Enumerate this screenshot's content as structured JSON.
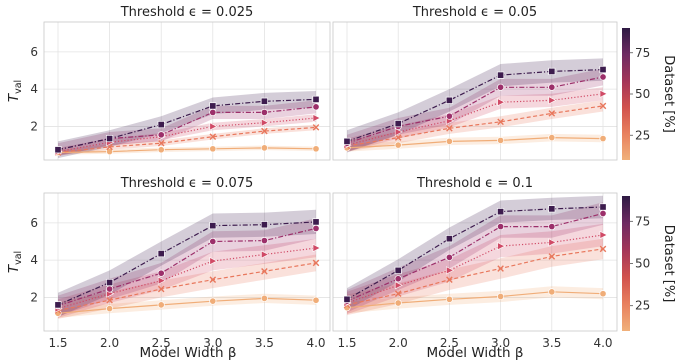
{
  "chart_data": {
    "type": "line",
    "figure": {
      "xlabel": "Model Width β",
      "ylabel": "T_val",
      "colorbar": {
        "label": "Dataset [%]",
        "ticks": [
          "25",
          "50",
          "75"
        ],
        "range": [
          10,
          90
        ],
        "colors": [
          "#f0b07a",
          "#e8805e",
          "#d1524e",
          "#a33559",
          "#6e2a62",
          "#2e1a43"
        ]
      }
    },
    "x": [
      1.5,
      2.0,
      2.5,
      3.0,
      3.5,
      4.0
    ],
    "x_tick_labels": [
      "1.5",
      "2.0",
      "2.5",
      "3.0",
      "3.5",
      "4.0"
    ],
    "y_ticks": [
      2,
      4,
      6
    ],
    "y_tick_labels": [
      "2",
      "4",
      "6"
    ],
    "ylim": [
      0.2,
      7.6
    ],
    "series_styles": [
      {
        "dataset": 10,
        "color": "#f0ad78",
        "marker": "circle",
        "dash": "solid"
      },
      {
        "dataset": 25,
        "color": "#e8775c",
        "marker": "x",
        "dash": "dashed"
      },
      {
        "dataset": 40,
        "color": "#d04a66",
        "marker": "triangle",
        "dash": "dotted"
      },
      {
        "dataset": 60,
        "color": "#9c2f6a",
        "marker": "circle",
        "dash": "dashdot"
      },
      {
        "dataset": 85,
        "color": "#3d1c4e",
        "marker": "square",
        "dash": "dashdot"
      }
    ],
    "panels": [
      {
        "title": "Threshold ϵ = 0.025",
        "series": [
          {
            "values": [
              0.6,
              0.65,
              0.75,
              0.8,
              0.85,
              0.8
            ],
            "band": 0.12
          },
          {
            "values": [
              0.6,
              0.9,
              1.1,
              1.45,
              1.75,
              1.95
            ],
            "band": 0.15
          },
          {
            "values": [
              0.65,
              1.15,
              1.45,
              2.0,
              2.2,
              2.45
            ],
            "band": 0.2
          },
          {
            "values": [
              0.75,
              1.35,
              1.55,
              2.75,
              2.75,
              3.05
            ],
            "band": 0.35
          },
          {
            "values": [
              0.75,
              1.35,
              2.1,
              3.1,
              3.35,
              3.45
            ],
            "band": 0.45
          }
        ]
      },
      {
        "title": "Threshold ϵ = 0.05",
        "series": [
          {
            "values": [
              0.85,
              1.0,
              1.2,
              1.25,
              1.4,
              1.35
            ],
            "band": 0.2
          },
          {
            "values": [
              0.95,
              1.4,
              1.9,
              2.25,
              2.7,
              3.1
            ],
            "band": 0.3
          },
          {
            "values": [
              1.0,
              1.7,
              2.3,
              3.3,
              3.4,
              3.75
            ],
            "band": 0.35
          },
          {
            "values": [
              1.1,
              2.0,
              2.55,
              4.1,
              4.1,
              4.65
            ],
            "band": 0.45
          },
          {
            "values": [
              1.2,
              2.15,
              3.4,
              4.75,
              4.95,
              5.05
            ],
            "band": 0.6
          }
        ]
      },
      {
        "title": "Threshold ϵ = 0.075",
        "series": [
          {
            "values": [
              1.15,
              1.4,
              1.6,
              1.8,
              1.95,
              1.85
            ],
            "band": 0.25
          },
          {
            "values": [
              1.3,
              1.85,
              2.45,
              2.95,
              3.4,
              3.85
            ],
            "band": 0.45
          },
          {
            "values": [
              1.4,
              2.2,
              2.9,
              3.95,
              4.3,
              4.65
            ],
            "band": 0.5
          },
          {
            "values": [
              1.55,
              2.45,
              3.3,
              5.0,
              5.05,
              5.7
            ],
            "band": 0.55
          },
          {
            "values": [
              1.6,
              2.8,
              4.35,
              5.85,
              5.9,
              6.05
            ],
            "band": 0.65
          }
        ]
      },
      {
        "title": "Threshold ϵ = 0.1",
        "series": [
          {
            "values": [
              1.45,
              1.7,
              1.9,
              2.05,
              2.3,
              2.2
            ],
            "band": 0.3
          },
          {
            "values": [
              1.6,
              2.2,
              2.95,
              3.55,
              4.2,
              4.6
            ],
            "band": 0.55
          },
          {
            "values": [
              1.7,
              2.65,
              3.45,
              4.75,
              4.95,
              5.35
            ],
            "band": 0.6
          },
          {
            "values": [
              1.8,
              3.0,
              4.15,
              5.8,
              5.8,
              6.5
            ],
            "band": 0.6
          },
          {
            "values": [
              1.9,
              3.45,
              5.15,
              6.6,
              6.75,
              6.85
            ],
            "band": 0.6
          }
        ]
      }
    ]
  }
}
